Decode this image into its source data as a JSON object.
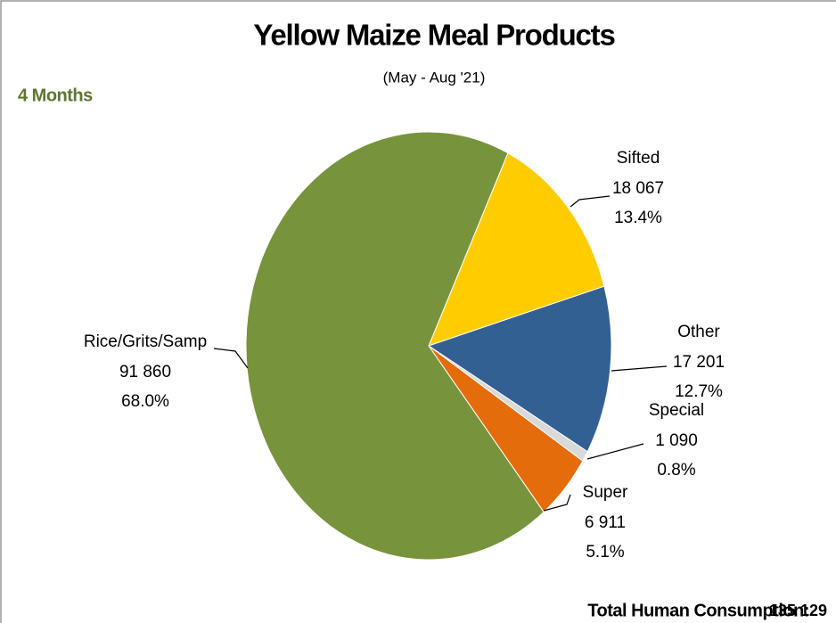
{
  "chart_data": {
    "type": "pie",
    "title": "Yellow Maize Meal Products",
    "subtitle": "(May - Aug '21)",
    "annotation": "4 Months",
    "categories": [
      "Sifted",
      "Other",
      "Special",
      "Super",
      "Rice/Grits/Samp"
    ],
    "values": [
      18067,
      17201,
      1090,
      6911,
      91860
    ],
    "value_labels": [
      "18 067",
      "17 201",
      "1 090",
      "6 911",
      "91 860"
    ],
    "percent_labels": [
      "13.4%",
      "12.7%",
      "0.8%",
      "5.1%",
      "68.0%"
    ],
    "colors": [
      "#ffcc00",
      "#336092",
      "#d9d9d9",
      "#e46c0a",
      "#77933c"
    ],
    "total_title": "Total Human Consumption:",
    "total": {
      "value": 135129,
      "label": "135 129"
    }
  }
}
